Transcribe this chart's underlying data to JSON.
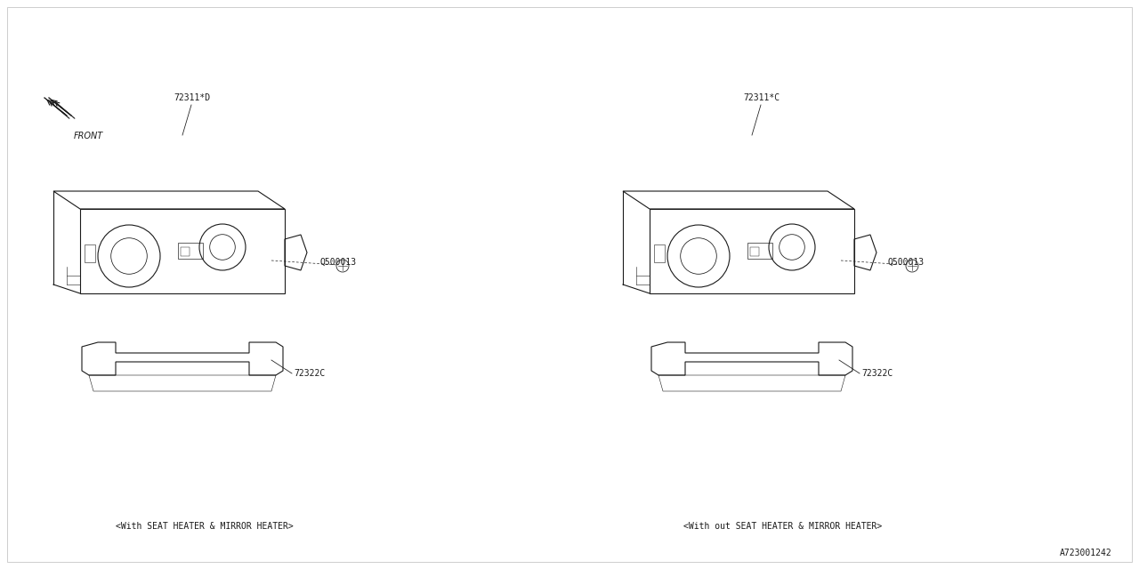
{
  "bg_color": "#ffffff",
  "line_color": "#1a1a1a",
  "fig_width": 12.8,
  "fig_height": 6.4,
  "caption_left": "<With SEAT HEATER & MIRROR HEATER>",
  "caption_right": "<With out SEAT HEATER & MIRROR HEATER>",
  "diagram_id": "A723001242",
  "font_size_label": 7,
  "font_size_caption": 7,
  "font_size_id": 7,
  "font_size_front": 7
}
